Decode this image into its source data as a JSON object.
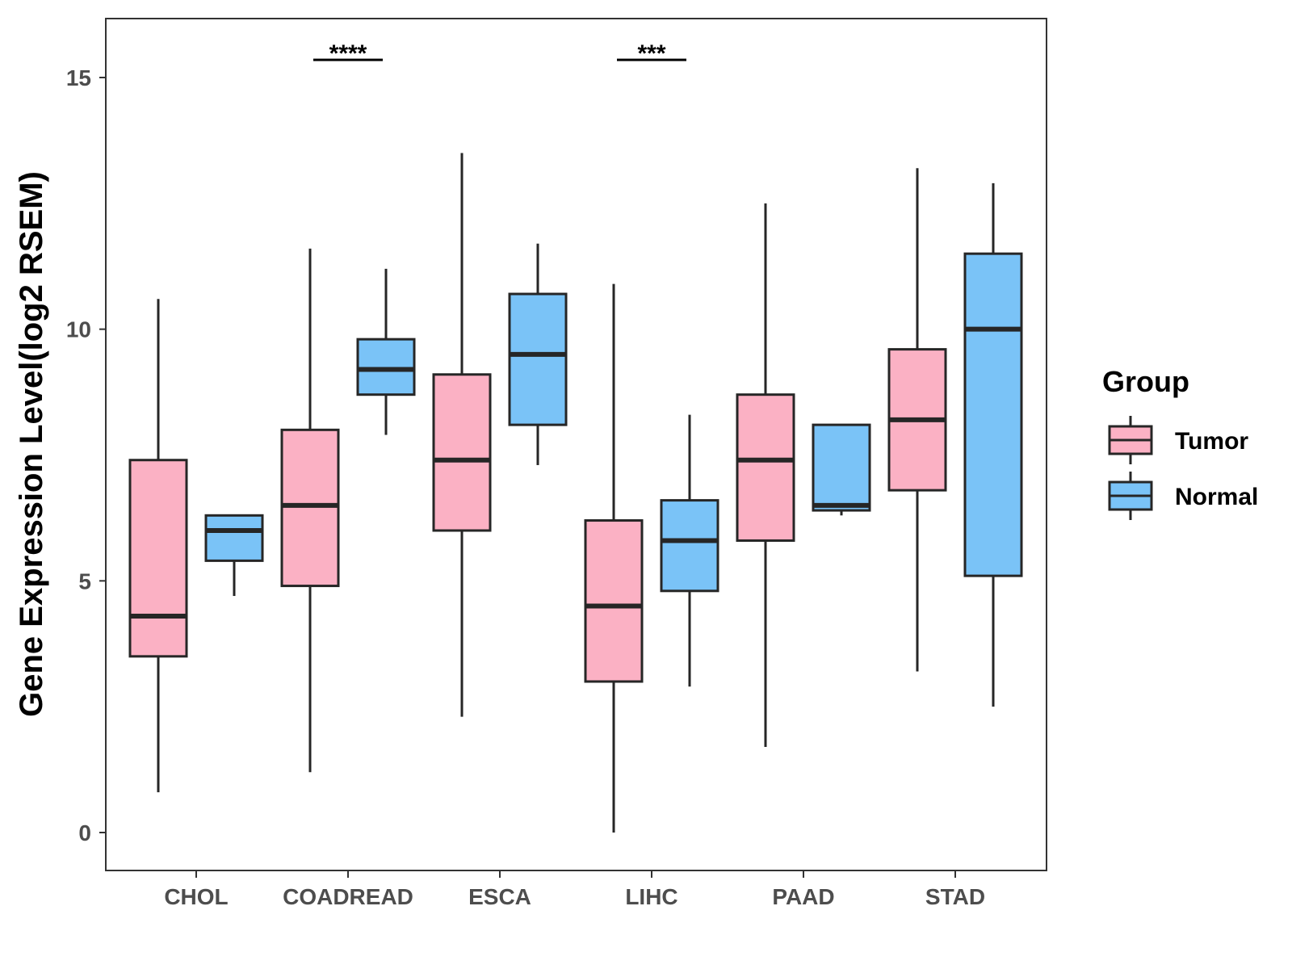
{
  "chart_data": {
    "type": "boxplot",
    "title": "",
    "xlabel": "",
    "ylabel": "Gene Expression Level(log2 RSEM)",
    "ylim": [
      -0.75,
      16.2
    ],
    "yticks": [
      0,
      5,
      10,
      15
    ],
    "ytick_labels": [
      "0",
      "5",
      "10",
      "15"
    ],
    "categories": [
      "CHOL",
      "COADREAD",
      "ESCA",
      "LIHC",
      "PAAD",
      "STAD"
    ],
    "grid": false,
    "legend": {
      "title": "Group",
      "position": "right",
      "entries": [
        "Tumor",
        "Normal"
      ]
    },
    "series": [
      {
        "name": "Tumor",
        "color": "#FBB1C4",
        "boxes": [
          {
            "category": "CHOL",
            "min": 0.8,
            "q1": 3.5,
            "median": 4.3,
            "q3": 7.4,
            "max": 10.6
          },
          {
            "category": "COADREAD",
            "min": 1.2,
            "q1": 4.9,
            "median": 6.5,
            "q3": 8.0,
            "max": 11.6
          },
          {
            "category": "ESCA",
            "min": 2.3,
            "q1": 6.0,
            "median": 7.4,
            "q3": 9.1,
            "max": 13.5
          },
          {
            "category": "LIHC",
            "min": 0.0,
            "q1": 3.0,
            "median": 4.5,
            "q3": 6.2,
            "max": 10.9
          },
          {
            "category": "PAAD",
            "min": 1.7,
            "q1": 5.8,
            "median": 7.4,
            "q3": 8.7,
            "max": 12.5
          },
          {
            "category": "STAD",
            "min": 3.2,
            "q1": 6.8,
            "median": 8.2,
            "q3": 9.6,
            "max": 13.2
          }
        ]
      },
      {
        "name": "Normal",
        "color": "#7AC3F7",
        "boxes": [
          {
            "category": "CHOL",
            "min": 4.7,
            "q1": 5.4,
            "median": 6.0,
            "q3": 6.3,
            "max": 6.3
          },
          {
            "category": "COADREAD",
            "min": 7.9,
            "q1": 8.7,
            "median": 9.2,
            "q3": 9.8,
            "max": 11.2
          },
          {
            "category": "ESCA",
            "min": 7.3,
            "q1": 8.1,
            "median": 9.5,
            "q3": 10.7,
            "max": 11.7
          },
          {
            "category": "LIHC",
            "min": 2.9,
            "q1": 4.8,
            "median": 5.8,
            "q3": 6.6,
            "max": 8.3
          },
          {
            "category": "PAAD",
            "min": 6.3,
            "q1": 6.4,
            "median": 6.5,
            "q3": 8.1,
            "max": 8.1
          },
          {
            "category": "STAD",
            "min": 2.5,
            "q1": 5.1,
            "median": 10.0,
            "q3": 11.5,
            "max": 12.9
          }
        ]
      }
    ],
    "annotations": [
      {
        "category": "COADREAD",
        "label": "****",
        "y": 15.35
      },
      {
        "category": "LIHC",
        "label": "***",
        "y": 15.35
      }
    ],
    "colors": {
      "tumor": "#FBB1C4",
      "normal": "#7AC3F7",
      "outline": "#262626",
      "panel_border": "#333333",
      "tick_label": "#4d4d4d"
    }
  }
}
